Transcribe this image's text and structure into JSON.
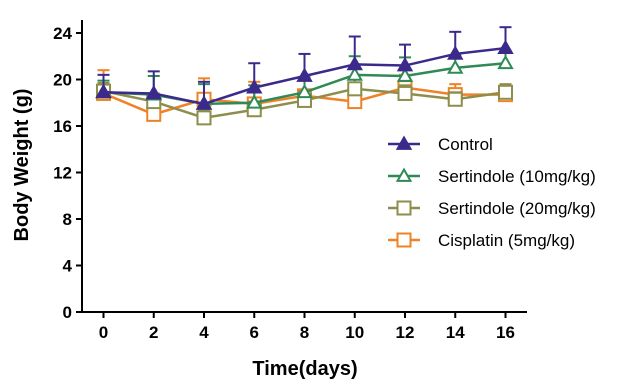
{
  "chart_data": {
    "type": "line",
    "title": "",
    "xlabel": "Time(days)",
    "ylabel": "Body Weight (g)",
    "x": [
      0,
      2,
      4,
      6,
      8,
      10,
      12,
      14,
      16
    ],
    "x_ticks": [
      "0",
      "2",
      "4",
      "6",
      "8",
      "10",
      "12",
      "14",
      "16"
    ],
    "y_ticks": [
      "0",
      "4",
      "8",
      "12",
      "16",
      "20",
      "24"
    ],
    "xlim": [
      -1,
      17
    ],
    "ylim": [
      0,
      25
    ],
    "grid": false,
    "legend_position": "right",
    "series": [
      {
        "name": "Control",
        "color": "#3b2a8c",
        "marker": "triangle-filled",
        "values": [
          18.9,
          18.8,
          17.9,
          19.3,
          20.3,
          21.3,
          21.2,
          22.2,
          22.7
        ],
        "error": [
          1.5,
          1.9,
          1.9,
          2.1,
          1.9,
          2.4,
          1.8,
          1.9,
          1.8
        ]
      },
      {
        "name": "Sertindole (10mg/kg)",
        "color": "#2f8a55",
        "marker": "triangle-open",
        "values": [
          18.9,
          18.7,
          17.9,
          18.0,
          18.9,
          20.4,
          20.3,
          21.0,
          21.4
        ],
        "error": [
          1.0,
          1.6,
          1.7,
          1.5,
          1.3,
          1.6,
          1.6,
          1.1,
          1.1
        ]
      },
      {
        "name": "Sertindole (20mg/kg)",
        "color": "#8e8e4c",
        "marker": "square-open",
        "values": [
          19.0,
          18.1,
          16.7,
          17.4,
          18.2,
          19.2,
          18.8,
          18.3,
          18.9
        ],
        "error": [
          0.7,
          0.7,
          0.7,
          0.7,
          0.8,
          0.8,
          0.7,
          0.6,
          0.7
        ]
      },
      {
        "name": "Cisplatin (5mg/kg)",
        "color": "#f08226",
        "marker": "square-open",
        "values": [
          18.8,
          17.0,
          18.3,
          17.9,
          18.6,
          18.1,
          19.3,
          18.7,
          18.7
        ],
        "error": [
          2.0,
          1.0,
          1.8,
          1.9,
          1.3,
          1.0,
          1.1,
          0.9,
          0.8
        ]
      }
    ]
  }
}
